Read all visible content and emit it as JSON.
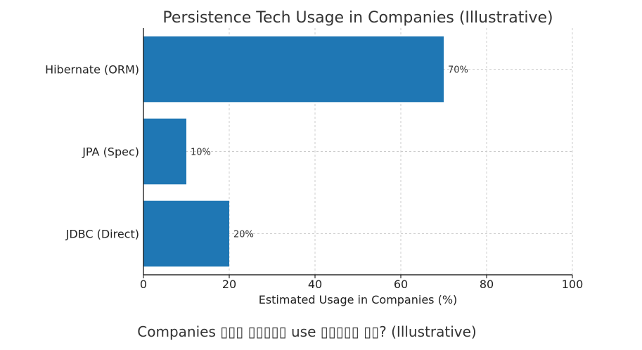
{
  "chart_data": {
    "type": "bar",
    "orientation": "horizontal",
    "title": "Persistence Tech Usage in Companies (Illustrative)",
    "categories": [
      "Hibernate (ORM)",
      "JPA (Spec)",
      "JDBC (Direct)"
    ],
    "values": [
      70,
      10,
      20
    ],
    "data_labels": [
      "70%",
      "10%",
      "20%"
    ],
    "xlabel": "Estimated Usage in Companies (%)",
    "ylabel": "",
    "xlim": [
      0,
      100
    ],
    "xticks": [
      0,
      20,
      40,
      60,
      80,
      100
    ],
    "grid": true,
    "bar_color": "#1f77b4"
  },
  "caption": "Companies ▯▯▯ ▯▯▯▯▯ use ▯▯▯▯▯ ▯▯? (Illustrative)"
}
